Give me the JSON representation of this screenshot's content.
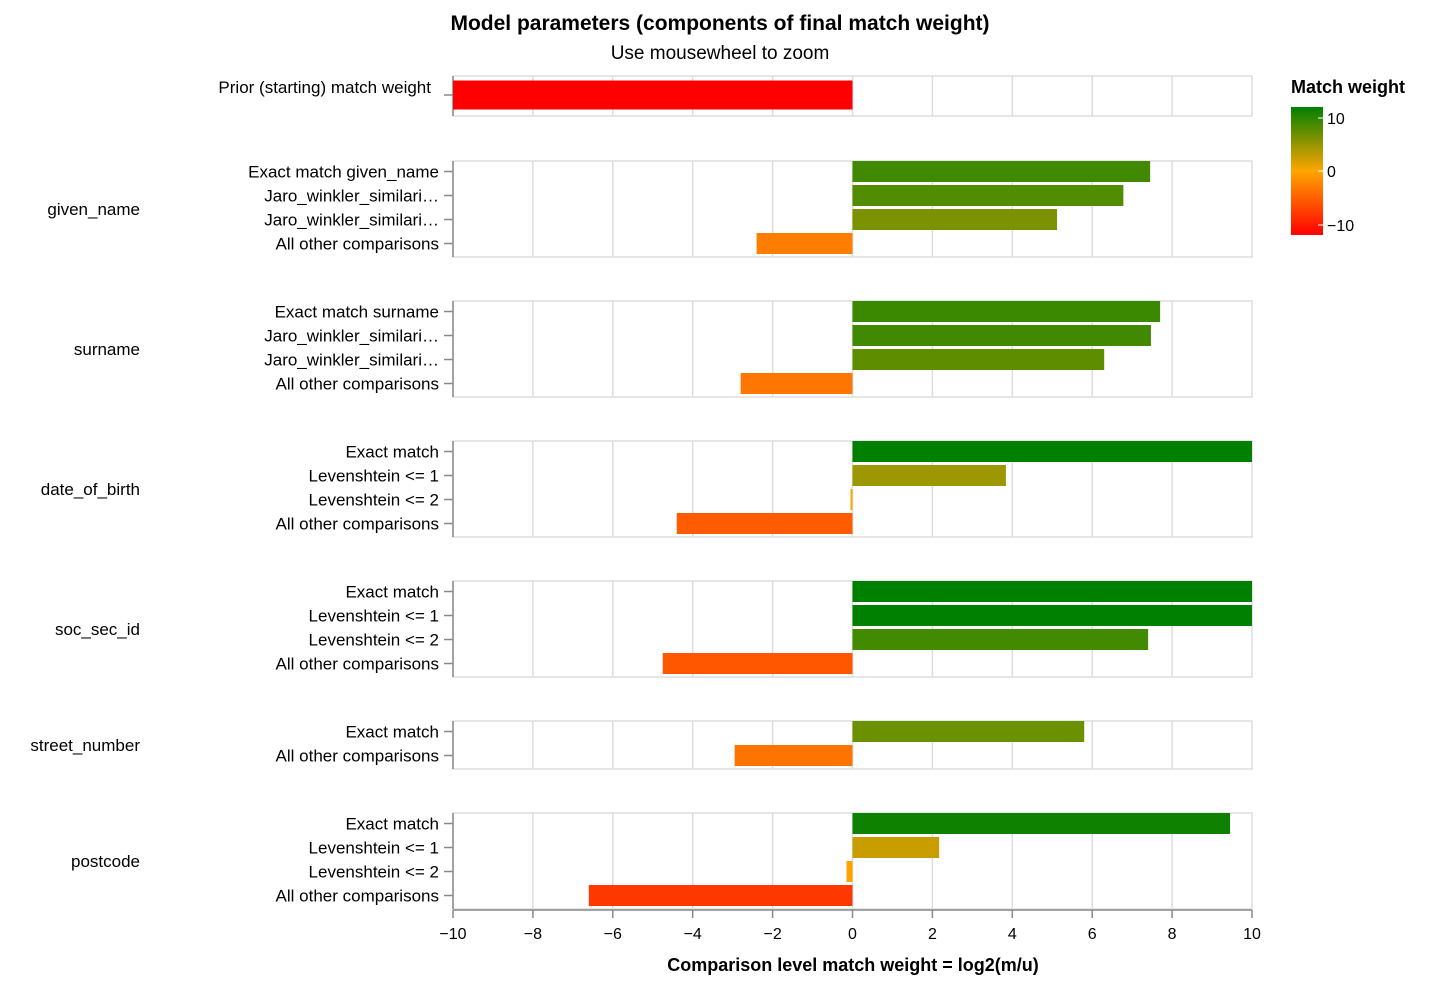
{
  "chart_data": {
    "type": "bar",
    "orientation": "horizontal",
    "title": "Model parameters (components of final match weight)",
    "subtitle": "Use mousewheel to zoom",
    "xlabel": "Comparison level match weight = log2(m/u)",
    "xlim": [
      -10,
      10
    ],
    "x_ticks": [
      "−10",
      "−8",
      "−6",
      "−4",
      "−2",
      "0",
      "2",
      "4",
      "6",
      "8",
      "10"
    ],
    "grid": true,
    "legend": {
      "title": "Match weight",
      "placement": "right",
      "ticks": [
        "10",
        "0",
        "−10"
      ],
      "color_stops": {
        "low": "#ff0000",
        "mid": "#ffa500",
        "high": "#008000"
      }
    },
    "groups": [
      {
        "name": "",
        "rows": [
          {
            "label": "Prior (starting) match weight",
            "value": -10.0
          }
        ]
      },
      {
        "name": "given_name",
        "rows": [
          {
            "label": "Exact match given_name",
            "value": 7.45
          },
          {
            "label": "Jaro_winkler_similari…",
            "value": 6.78
          },
          {
            "label": "Jaro_winkler_similari…",
            "value": 5.12
          },
          {
            "label": "All other comparisons",
            "value": -2.4
          }
        ]
      },
      {
        "name": "surname",
        "rows": [
          {
            "label": "Exact match surname",
            "value": 7.7
          },
          {
            "label": "Jaro_winkler_similari…",
            "value": 7.47
          },
          {
            "label": "Jaro_winkler_similari…",
            "value": 6.3
          },
          {
            "label": "All other comparisons",
            "value": -2.8
          }
        ]
      },
      {
        "name": "date_of_birth",
        "rows": [
          {
            "label": "Exact match",
            "value": 10.0
          },
          {
            "label": "Levenshtein <= 1",
            "value": 3.84
          },
          {
            "label": "Levenshtein <= 2",
            "value": -0.05
          },
          {
            "label": "All other comparisons",
            "value": -4.4
          }
        ]
      },
      {
        "name": "soc_sec_id",
        "rows": [
          {
            "label": "Exact match",
            "value": 10.0
          },
          {
            "label": "Levenshtein <= 1",
            "value": 10.0
          },
          {
            "label": "Levenshtein <= 2",
            "value": 7.4
          },
          {
            "label": "All other comparisons",
            "value": -4.75
          }
        ]
      },
      {
        "name": "street_number",
        "rows": [
          {
            "label": "Exact match",
            "value": 5.8
          },
          {
            "label": "All other comparisons",
            "value": -2.95
          }
        ]
      },
      {
        "name": "postcode",
        "rows": [
          {
            "label": "Exact match",
            "value": 9.45
          },
          {
            "label": "Levenshtein <= 1",
            "value": 2.17
          },
          {
            "label": "Levenshtein <= 2",
            "value": -0.15
          },
          {
            "label": "All other comparisons",
            "value": -6.6
          }
        ]
      }
    ]
  }
}
